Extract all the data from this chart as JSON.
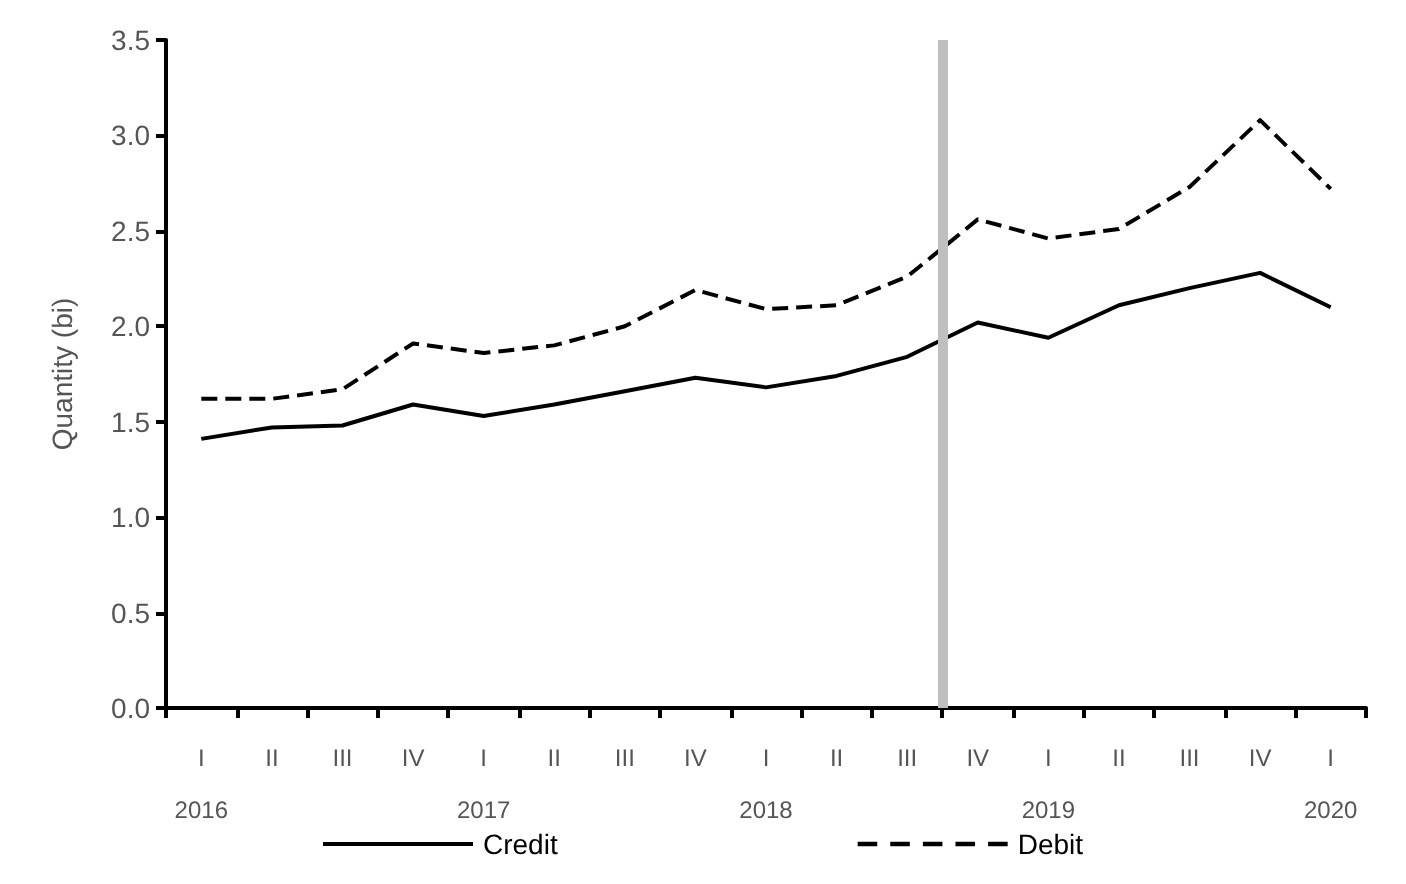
{
  "chart_data": {
    "type": "line",
    "ylabel": "Quantity (bi)",
    "categories": [
      "I\n2016",
      "II",
      "III",
      "IV",
      "I\n2017",
      "II",
      "III",
      "IV",
      "I\n2018",
      "II",
      "III",
      "IV",
      "I\n2019",
      "II",
      "III",
      "IV",
      "I\n2020"
    ],
    "ylim": [
      0,
      3.5
    ],
    "yticks": [
      {
        "value": 0,
        "label": "0.0"
      },
      {
        "value": 0.5,
        "label": "0.5"
      },
      {
        "value": 1,
        "label": "1.0"
      },
      {
        "value": 1.5,
        "label": "1.5"
      },
      {
        "value": 2,
        "label": "2.0"
      },
      {
        "value": 2.5,
        "label": "2.5"
      },
      {
        "value": 3,
        "label": "3.0"
      },
      {
        "value": 3.5,
        "label": "3.5"
      }
    ],
    "series": [
      {
        "name": "Credit",
        "color": "#000000",
        "line_style": "solid",
        "values": [
          1.41,
          1.47,
          1.48,
          1.59,
          1.53,
          1.59,
          1.66,
          1.73,
          1.68,
          1.74,
          1.84,
          2.02,
          1.94,
          2.11,
          2.2,
          2.28,
          2.1
        ]
      },
      {
        "name": "Debit",
        "color": "#000000",
        "line_style": "dashed",
        "values": [
          1.62,
          1.62,
          1.67,
          1.91,
          1.86,
          1.9,
          2.0,
          2.19,
          2.09,
          2.11,
          2.26,
          2.56,
          2.46,
          2.51,
          2.73,
          3.08,
          2.72
        ]
      }
    ],
    "grid": false,
    "legend": "bottom",
    "marker": "none"
  }
}
